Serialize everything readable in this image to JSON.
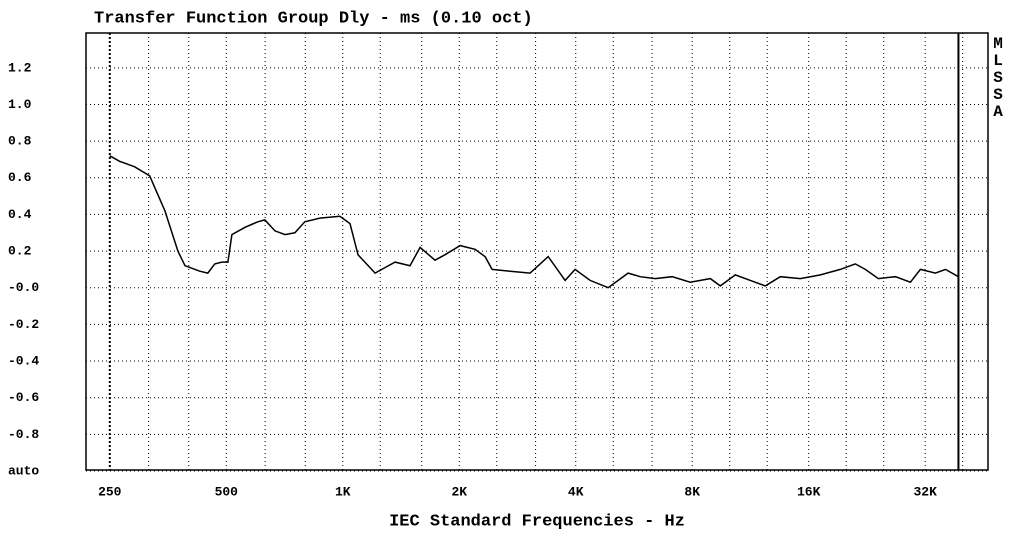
{
  "chart_data": {
    "type": "line",
    "title": "Transfer Function Group Dly - ms (0.10 oct)",
    "xlabel": "IEC Standard Frequencies - Hz",
    "side_label": "MLSSA",
    "xscale": "log",
    "xlim": [
      217,
      46500
    ],
    "ylim": [
      -1.0,
      1.39
    ],
    "xticks": [
      250,
      500,
      {
        "value": 1000,
        "label": "1K"
      },
      {
        "value": 2000,
        "label": "2K"
      },
      {
        "value": 4000,
        "label": "4K"
      },
      {
        "value": 8000,
        "label": "8K"
      },
      {
        "value": 16000,
        "label": "16K"
      },
      {
        "value": 32000,
        "label": "32K"
      }
    ],
    "xgrid": [
      315,
      400,
      630,
      800,
      1250,
      1600,
      2500,
      3150,
      5000,
      6300,
      10000,
      12500,
      20000,
      25000,
      40000
    ],
    "yticks": [
      1.2,
      {
        "value": 1.0,
        "label": "1.0"
      },
      0.8,
      0.6,
      0.4,
      0.2,
      {
        "value": 0,
        "label": "-0.0"
      },
      -0.2,
      -0.4,
      -0.6,
      -0.8,
      {
        "value": -1.0,
        "label": "auto"
      }
    ],
    "grid": true,
    "series": [
      {
        "name": "Group Delay",
        "color": "#000000",
        "x": [
          250,
          265,
          290,
          317,
          347,
          375,
          391,
          427,
          448,
          467,
          487,
          505,
          517,
          559,
          603,
          629,
          668,
          709,
          752,
          798,
          873,
          983,
          1044,
          1095,
          1212,
          1286,
          1365,
          1492,
          1584,
          1731,
          1838,
          2010,
          2197,
          2333,
          2432,
          2707,
          3048,
          3395,
          3755,
          3986,
          4358,
          4852,
          5464,
          5869,
          6417,
          7102,
          7905,
          8907,
          9454,
          10335,
          11300,
          12357,
          13512,
          15222,
          17148,
          19312,
          21113,
          22410,
          24220,
          26800,
          29300,
          31100,
          34000,
          36100,
          39000
        ],
        "values": [
          0.72,
          0.69,
          0.66,
          0.61,
          0.42,
          0.2,
          0.12,
          0.09,
          0.08,
          0.13,
          0.14,
          0.14,
          0.29,
          0.33,
          0.36,
          0.37,
          0.31,
          0.29,
          0.3,
          0.36,
          0.38,
          0.39,
          0.35,
          0.18,
          0.08,
          0.11,
          0.14,
          0.12,
          0.22,
          0.15,
          0.18,
          0.23,
          0.21,
          0.17,
          0.1,
          0.09,
          0.08,
          0.17,
          0.04,
          0.1,
          0.04,
          0.0,
          0.08,
          0.06,
          0.05,
          0.06,
          0.03,
          0.05,
          0.01,
          0.07,
          0.04,
          0.01,
          0.06,
          0.05,
          0.07,
          0.1,
          0.13,
          0.1,
          0.05,
          0.06,
          0.03,
          0.1,
          0.08,
          0.1,
          0.06
        ]
      }
    ]
  }
}
